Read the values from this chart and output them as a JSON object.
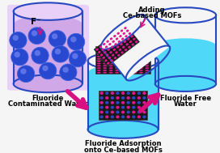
{
  "bg_color": "#f5f5f5",
  "water_left_color": "#d0a8e8",
  "water_left_fill": "#c8a0e0",
  "water_center_color": "#50d8f8",
  "water_right_color": "#50d8f8",
  "sphere_color": "#2848d0",
  "sphere_edge_color": "#4060e0",
  "sphere_highlight": "#6878e8",
  "mof_dark_color": "#181818",
  "mof_dot_pink": "#e01890",
  "mof_dot_blue": "#2848c8",
  "arrow_color": "#d81080",
  "beaker_outline": "#2848c0",
  "label_font_size": 5.5,
  "label_left_1": "Fluoride",
  "label_left_2": "Contaminated Water",
  "label_center_1": "Fluoride Adsorption",
  "label_center_2": "onto Ce-based MOFs",
  "label_right_1": "Fluoride Free",
  "label_right_2": "Water",
  "label_top_1": "Adding",
  "label_top_2": "Ce-based MOFs",
  "fluoride_label": "F⁻"
}
